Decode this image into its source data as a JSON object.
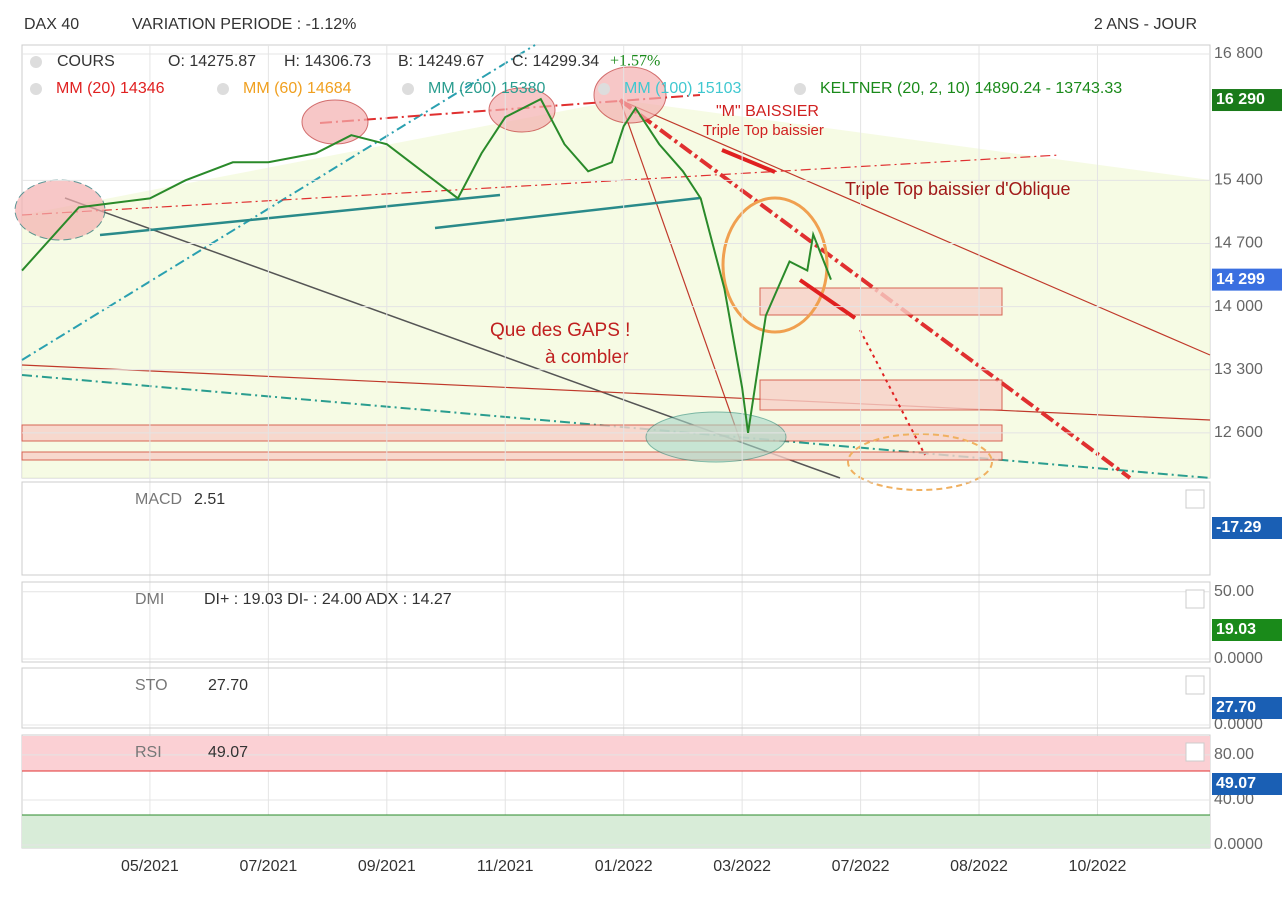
{
  "header": {
    "symbol": "DAX 40",
    "variation": "VARIATION PERIODE : -1.12%",
    "period": "2 ANS - JOUR"
  },
  "legend": {
    "row1": [
      "COURS",
      "O: 14275.87",
      "H: 14306.73",
      "B: 14249.67",
      "C: 14299.34",
      "+1.57%"
    ],
    "row2": [
      {
        "name": "MM (20)",
        "value": "14346",
        "color": "#e02020"
      },
      {
        "name": "MM (60)",
        "value": "14684",
        "color": "#f0a020"
      },
      {
        "name": "MM (200)",
        "value": "15380",
        "color": "#2a9d8f"
      },
      {
        "name": "MM (100)",
        "value": "15103",
        "color": "#40c8d0"
      },
      {
        "name": "KELTNER (20, 2, 10)",
        "value": "14890.24 - 13743.33",
        "color": "#1a8a1a"
      }
    ]
  },
  "annotations": [
    "\"M\" BAISSIER",
    "Triple Top baissier",
    "Triple Top baissier d'Oblique",
    "Que des GAPS !",
    "à combler"
  ],
  "chart_data": {
    "type": "line",
    "xticks": [
      {
        "value": 0,
        "label": "05/2021"
      },
      {
        "value": 1,
        "label": "07/2021"
      },
      {
        "value": 2,
        "label": "09/2021"
      },
      {
        "value": 3,
        "label": "11/2021"
      },
      {
        "value": 4,
        "label": "01/2022"
      },
      {
        "value": 5,
        "label": "03/2022"
      },
      {
        "value": 6,
        "label": "07/2022"
      },
      {
        "value": 7,
        "label": "08/2022"
      },
      {
        "value": 8,
        "label": "10/2022"
      }
    ],
    "xlim": [
      -1.08,
      8.95
    ],
    "ylim": [
      12100,
      16900
    ],
    "yticks": [
      {
        "value": 16800,
        "label": "16 800"
      },
      {
        "value": 15400,
        "label": "15 400"
      },
      {
        "value": 14700,
        "label": "14 700"
      },
      {
        "value": 14000,
        "label": "14 000"
      },
      {
        "value": 13300,
        "label": "13 300"
      },
      {
        "value": 12600,
        "label": "12 600"
      }
    ],
    "badges": [
      {
        "value": 16290,
        "label": "16 290",
        "color": "#1a7a1a"
      },
      {
        "value": 14299,
        "label": "14 299",
        "color": "#3a6fe0"
      }
    ],
    "series": [
      {
        "name": "COURS",
        "color": "#2a8a2a",
        "x": [
          -1.08,
          -0.6,
          0,
          0.3,
          0.7,
          1.0,
          1.4,
          1.7,
          2.0,
          2.3,
          2.6,
          2.8,
          3.0,
          3.3,
          3.5,
          3.7,
          3.9,
          4.0,
          4.1,
          4.3,
          4.5,
          4.65,
          4.85,
          5.0,
          5.05,
          5.2,
          5.4,
          5.55,
          5.6,
          5.75
        ],
        "values": [
          14400,
          15100,
          15200,
          15400,
          15600,
          15600,
          15700,
          15900,
          15800,
          15500,
          15200,
          15700,
          16100,
          16300,
          15800,
          15500,
          15600,
          16000,
          16200,
          15800,
          15500,
          15200,
          14200,
          13100,
          12600,
          13900,
          14500,
          14400,
          14800,
          14299
        ]
      }
    ]
  },
  "panels": [
    {
      "label": "MACD",
      "value": "2.51",
      "badge": "-17.29",
      "ylim": [
        0,
        100
      ],
      "yticks": []
    },
    {
      "label": "DMI",
      "value": "DI+ : 19.03 DI- : 24.00 ADX : 14.27",
      "badge": "19.03",
      "ylim": [
        0,
        55
      ],
      "yticks": [
        {
          "value": 50,
          "label": "50.00"
        },
        {
          "value": 0,
          "label": "0.0000"
        }
      ]
    },
    {
      "label": "STO",
      "value": "27.70",
      "badge": "27.70",
      "ylim": [
        0,
        100
      ],
      "yticks": [
        {
          "value": 0,
          "label": "0.0000"
        }
      ]
    },
    {
      "label": "RSI",
      "value": "49.07",
      "badge": "49.07",
      "ylim": [
        0,
        95
      ],
      "yticks": [
        {
          "value": 80,
          "label": "80.00"
        },
        {
          "value": 40,
          "label": "40.00"
        },
        {
          "value": 0,
          "label": "0.0000"
        }
      ]
    }
  ]
}
